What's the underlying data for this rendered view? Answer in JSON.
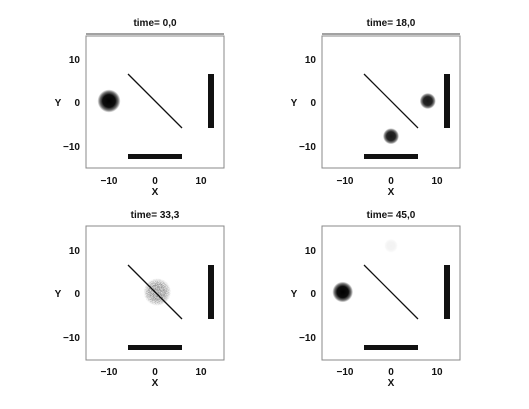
{
  "figure": {
    "panels": [
      {
        "title": "time= 0,0",
        "xlabel": "X",
        "ylabel": "Y",
        "xticks": [
          "−10",
          "0",
          "10"
        ],
        "yticks": [
          "10",
          "0",
          "−10"
        ],
        "blobs": [
          {
            "x": -10,
            "y": 0,
            "radius": 2.0,
            "intensity": 1.0
          }
        ]
      },
      {
        "title": "time= 18,0",
        "xlabel": "X",
        "ylabel": "Y",
        "xticks": [
          "−10",
          "0",
          "10"
        ],
        "yticks": [
          "10",
          "0",
          "−10"
        ],
        "blobs": [
          {
            "x": 8,
            "y": 0,
            "radius": 1.4,
            "intensity": 0.9
          },
          {
            "x": 0,
            "y": -8,
            "radius": 1.4,
            "intensity": 0.9
          }
        ]
      },
      {
        "title": "time= 33,3",
        "xlabel": "X",
        "ylabel": "Y",
        "xticks": [
          "−10",
          "0",
          "10"
        ],
        "yticks": [
          "10",
          "0",
          "−10"
        ],
        "blobs": [
          {
            "x": 0.5,
            "y": 0,
            "radius": 2.4,
            "intensity": 0.6,
            "speckled": true
          }
        ]
      },
      {
        "title": "time= 45,0",
        "xlabel": "X",
        "ylabel": "Y",
        "xticks": [
          "−10",
          "0",
          "10"
        ],
        "yticks": [
          "10",
          "0",
          "−10"
        ],
        "blobs": [
          {
            "x": -10.5,
            "y": 0,
            "radius": 1.8,
            "intensity": 1.0
          },
          {
            "x": 0,
            "y": 10.5,
            "radius": 1.2,
            "intensity": 0.05
          }
        ]
      }
    ],
    "x_range": [
      -15,
      15
    ],
    "y_range": [
      -15,
      15
    ],
    "diagonal_mirror": {
      "x1": -6,
      "y1": 6,
      "x2": 6,
      "y2": -6
    },
    "right_wall": {
      "x": 13,
      "y1": -6,
      "y2": 6
    },
    "bottom_wall": {
      "y": -12.5,
      "x1": -6,
      "x2": 6
    },
    "colors": {
      "foreground": "#111111",
      "background": "#ffffff"
    }
  }
}
